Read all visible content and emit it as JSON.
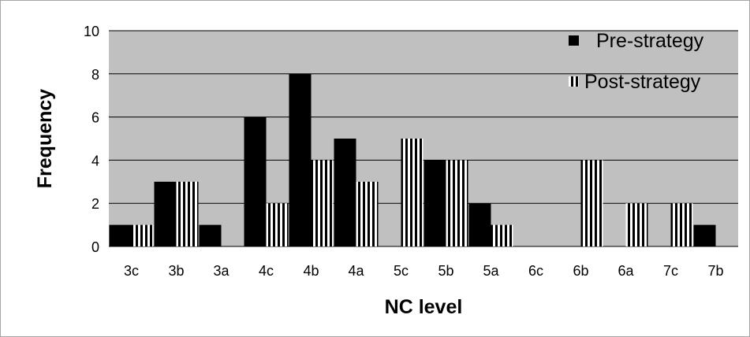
{
  "chart_data": {
    "type": "bar",
    "xlabel": "NC level",
    "ylabel": "Frequency",
    "ylim": [
      0,
      10
    ],
    "yticks": [
      "0",
      "2",
      "4",
      "6",
      "8",
      "10"
    ],
    "categories": [
      "3c",
      "3b",
      "3a",
      "4c",
      "4b",
      "4a",
      "5c",
      "5b",
      "5a",
      "6c",
      "6b",
      "6a",
      "7c",
      "7b"
    ],
    "series": [
      {
        "name": "Pre-strategy",
        "values": [
          1,
          3,
          1,
          6,
          8,
          5,
          0,
          4,
          2,
          0,
          0,
          0,
          0,
          1
        ]
      },
      {
        "name": "Post-strategy",
        "values": [
          1,
          3,
          0,
          2,
          4,
          3,
          5,
          4,
          1,
          0,
          4,
          2,
          2,
          0
        ]
      }
    ],
    "legend_position": "top-right",
    "grid": true,
    "colors": {
      "plot_background": "#c0c0c0",
      "pre_fill": "#000000",
      "post_stripe_dark": "#000000",
      "post_stripe_light": "#ffffff",
      "gridline": "#000000"
    }
  }
}
